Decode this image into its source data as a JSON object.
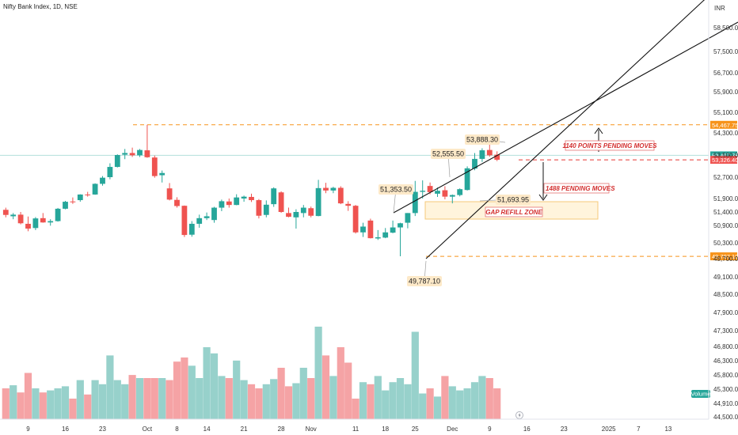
{
  "title": "Nifty Bank Index, 1D, NSE",
  "currency": "INR",
  "volume_label": "Volume",
  "colors": {
    "up": "#26a69a",
    "down": "#ef5350",
    "vol_up": "#97d1cb",
    "vol_down": "#f5a3a5",
    "orange": "#f7931a",
    "callout_bg": "#fde9c8",
    "zone_bg": "#fff4dc",
    "zone_border": "#f5c97a",
    "red_dashed": "#e53935"
  },
  "chart_data": {
    "type": "candlestick",
    "y_ticks": [
      "58,500.00",
      "57,500.00",
      "56,700.00",
      "55,900.00",
      "55,100.00",
      "54,300.00",
      "53,500.00",
      "52,700.00",
      "51,900.00",
      "51,400.00",
      "50,900.00",
      "50,300.00",
      "49,700.00",
      "49,100.00",
      "48,500.00",
      "47,900.00",
      "47,300.00",
      "46,800.00",
      "46,300.00",
      "45,800.00",
      "45,300.00",
      "44,910.00",
      "44,500.00"
    ],
    "x_ticks": [
      {
        "label": "9",
        "i": 3
      },
      {
        "label": "16",
        "i": 8
      },
      {
        "label": "23",
        "i": 13
      },
      {
        "label": "Oct",
        "i": 19
      },
      {
        "label": "8",
        "i": 23
      },
      {
        "label": "14",
        "i": 27
      },
      {
        "label": "21",
        "i": 32
      },
      {
        "label": "28",
        "i": 37
      },
      {
        "label": "Nov",
        "i": 41
      },
      {
        "label": "11",
        "i": 47
      },
      {
        "label": "18",
        "i": 51
      },
      {
        "label": "25",
        "i": 55
      },
      {
        "label": "Dec",
        "i": 60
      },
      {
        "label": "9",
        "i": 65
      },
      {
        "label": "16",
        "i": 70
      },
      {
        "label": "23",
        "i": 75
      },
      {
        "label": "2025",
        "i": 81
      },
      {
        "label": "7",
        "i": 85
      },
      {
        "label": "13",
        "i": 89
      }
    ],
    "candles": [
      {
        "o": 51480,
        "h": 51560,
        "l": 51200,
        "c": 51290,
        "v": 0.3
      },
      {
        "o": 51240,
        "h": 51360,
        "l": 51130,
        "c": 51300,
        "v": 0.33
      },
      {
        "o": 51300,
        "h": 51400,
        "l": 50940,
        "c": 50980,
        "v": 0.26
      },
      {
        "o": 50960,
        "h": 51230,
        "l": 50700,
        "c": 50790,
        "v": 0.45
      },
      {
        "o": 50810,
        "h": 51210,
        "l": 50740,
        "c": 51160,
        "v": 0.3
      },
      {
        "o": 51170,
        "h": 51360,
        "l": 51000,
        "c": 51010,
        "v": 0.26
      },
      {
        "o": 51010,
        "h": 51130,
        "l": 50890,
        "c": 51060,
        "v": 0.28
      },
      {
        "o": 51060,
        "h": 51550,
        "l": 51040,
        "c": 51520,
        "v": 0.3
      },
      {
        "o": 51520,
        "h": 51810,
        "l": 51500,
        "c": 51780,
        "v": 0.32
      },
      {
        "o": 51790,
        "h": 51940,
        "l": 51700,
        "c": 51780,
        "v": 0.2
      },
      {
        "o": 51840,
        "h": 52060,
        "l": 51780,
        "c": 52050,
        "v": 0.38
      },
      {
        "o": 52050,
        "h": 52150,
        "l": 51970,
        "c": 52040,
        "v": 0.24
      },
      {
        "o": 52050,
        "h": 52470,
        "l": 52040,
        "c": 52450,
        "v": 0.38
      },
      {
        "o": 52450,
        "h": 52740,
        "l": 52380,
        "c": 52680,
        "v": 0.34
      },
      {
        "o": 52700,
        "h": 53200,
        "l": 52620,
        "c": 53070,
        "v": 0.62
      },
      {
        "o": 53070,
        "h": 53520,
        "l": 53050,
        "c": 53500,
        "v": 0.38
      },
      {
        "o": 53510,
        "h": 53680,
        "l": 53350,
        "c": 53560,
        "v": 0.34
      },
      {
        "o": 53560,
        "h": 53720,
        "l": 53430,
        "c": 53490,
        "v": 0.43
      },
      {
        "o": 53490,
        "h": 53680,
        "l": 53430,
        "c": 53650,
        "v": 0.4
      },
      {
        "o": 53640,
        "h": 54470,
        "l": 53400,
        "c": 53420,
        "v": 0.4
      },
      {
        "o": 53410,
        "h": 53480,
        "l": 52680,
        "c": 52740,
        "v": 0.4
      },
      {
        "o": 52770,
        "h": 52940,
        "l": 52500,
        "c": 52850,
        "v": 0.4
      },
      {
        "o": 52280,
        "h": 52480,
        "l": 51830,
        "c": 51860,
        "v": 0.38
      },
      {
        "o": 51850,
        "h": 51950,
        "l": 51560,
        "c": 51620,
        "v": 0.56
      },
      {
        "o": 51630,
        "h": 51640,
        "l": 50500,
        "c": 50570,
        "v": 0.6
      },
      {
        "o": 50580,
        "h": 51060,
        "l": 50510,
        "c": 50960,
        "v": 0.52
      },
      {
        "o": 50960,
        "h": 51300,
        "l": 50820,
        "c": 51170,
        "v": 0.4
      },
      {
        "o": 51170,
        "h": 51380,
        "l": 51100,
        "c": 51240,
        "v": 0.7
      },
      {
        "o": 51100,
        "h": 51590,
        "l": 51000,
        "c": 51560,
        "v": 0.64
      },
      {
        "o": 51560,
        "h": 51860,
        "l": 51430,
        "c": 51800,
        "v": 0.42
      },
      {
        "o": 51790,
        "h": 51900,
        "l": 51560,
        "c": 51660,
        "v": 0.4
      },
      {
        "o": 51660,
        "h": 52060,
        "l": 51650,
        "c": 51940,
        "v": 0.57
      },
      {
        "o": 51900,
        "h": 52010,
        "l": 51780,
        "c": 51970,
        "v": 0.38
      },
      {
        "o": 51960,
        "h": 52080,
        "l": 51770,
        "c": 51840,
        "v": 0.34
      },
      {
        "o": 51840,
        "h": 51880,
        "l": 51160,
        "c": 51260,
        "v": 0.3
      },
      {
        "o": 51290,
        "h": 51830,
        "l": 51200,
        "c": 51670,
        "v": 0.34
      },
      {
        "o": 51690,
        "h": 52320,
        "l": 51590,
        "c": 52280,
        "v": 0.39
      },
      {
        "o": 52130,
        "h": 52170,
        "l": 51370,
        "c": 51400,
        "v": 0.5
      },
      {
        "o": 51360,
        "h": 51560,
        "l": 51200,
        "c": 51220,
        "v": 0.32
      },
      {
        "o": 51200,
        "h": 51500,
        "l": 50790,
        "c": 51400,
        "v": 0.35
      },
      {
        "o": 51360,
        "h": 51660,
        "l": 51200,
        "c": 51560,
        "v": 0.5
      },
      {
        "o": 51540,
        "h": 51600,
        "l": 51200,
        "c": 51260,
        "v": 0.4
      },
      {
        "o": 51250,
        "h": 52600,
        "l": 51240,
        "c": 52290,
        "v": 0.9
      },
      {
        "o": 52300,
        "h": 52490,
        "l": 52100,
        "c": 52200,
        "v": 0.62
      },
      {
        "o": 52200,
        "h": 52340,
        "l": 52100,
        "c": 52300,
        "v": 0.42
      },
      {
        "o": 52300,
        "h": 52360,
        "l": 51690,
        "c": 51720,
        "v": 0.7
      },
      {
        "o": 51700,
        "h": 51800,
        "l": 51440,
        "c": 51630,
        "v": 0.55
      },
      {
        "o": 51630,
        "h": 51660,
        "l": 50620,
        "c": 50660,
        "v": 0.2
      },
      {
        "o": 50660,
        "h": 51000,
        "l": 50500,
        "c": 50860,
        "v": 0.36
      },
      {
        "o": 51080,
        "h": 51150,
        "l": 50450,
        "c": 50460,
        "v": 0.34
      },
      {
        "o": 50450,
        "h": 50740,
        "l": 50400,
        "c": 50490,
        "v": 0.42
      },
      {
        "o": 50480,
        "h": 50810,
        "l": 50460,
        "c": 50660,
        "v": 0.28
      },
      {
        "o": 50650,
        "h": 51080,
        "l": 50630,
        "c": 50830,
        "v": 0.36
      },
      {
        "o": 50830,
        "h": 51000,
        "l": 49790,
        "c": 50980,
        "v": 0.4
      },
      {
        "o": 51000,
        "h": 51360,
        "l": 50800,
        "c": 51360,
        "v": 0.34
      },
      {
        "o": 51360,
        "h": 52560,
        "l": 51250,
        "c": 52150,
        "v": 0.85
      },
      {
        "o": 52150,
        "h": 52580,
        "l": 51900,
        "c": 52190,
        "v": 0.25
      },
      {
        "o": 52370,
        "h": 52500,
        "l": 52060,
        "c": 52140,
        "v": 0.3
      },
      {
        "o": 52080,
        "h": 52310,
        "l": 51960,
        "c": 52190,
        "v": 0.22
      },
      {
        "o": 52210,
        "h": 52360,
        "l": 51870,
        "c": 51970,
        "v": 0.42
      },
      {
        "o": 51970,
        "h": 52050,
        "l": 51720,
        "c": 52030,
        "v": 0.32
      },
      {
        "o": 52030,
        "h": 52280,
        "l": 51980,
        "c": 52250,
        "v": 0.28
      },
      {
        "o": 52220,
        "h": 53090,
        "l": 52200,
        "c": 53020,
        "v": 0.3
      },
      {
        "o": 53010,
        "h": 53560,
        "l": 52950,
        "c": 53360,
        "v": 0.36
      },
      {
        "o": 53360,
        "h": 53700,
        "l": 53250,
        "c": 53640,
        "v": 0.42
      },
      {
        "o": 53650,
        "h": 53900,
        "l": 53440,
        "c": 53490,
        "v": 0.4
      },
      {
        "o": 53510,
        "h": 53610,
        "l": 53280,
        "c": 53330,
        "v": 0.3
      }
    ],
    "levels": [
      {
        "price": 54467.75,
        "label": "54,467.75",
        "color": "orange"
      },
      {
        "price": 53487.75,
        "label": "53,487.75",
        "color": "teal"
      },
      {
        "price": 53326.4,
        "label": "53,326.40",
        "color": "red"
      },
      {
        "price": 49787.1,
        "label": "49,787.10",
        "color": "orange"
      }
    ],
    "callouts": [
      {
        "label": "51,353.50",
        "i": 47,
        "price": 51353.5
      },
      {
        "label": "52,555.50",
        "i": 55,
        "price": 52555.5
      },
      {
        "label": "53,888.30",
        "i": 64,
        "price": 53888.3
      },
      {
        "label": "51,693.95",
        "i": 59,
        "price": 51693.95
      },
      {
        "label": "49,787.10",
        "i": 53,
        "price": 49787.1
      }
    ],
    "annotations": {
      "pending_up": "1140 POINTS PENDING MOVES",
      "pending_down": "1488 PENDING MOVES",
      "gap_zone": "GAP REFILL ZONE"
    }
  }
}
